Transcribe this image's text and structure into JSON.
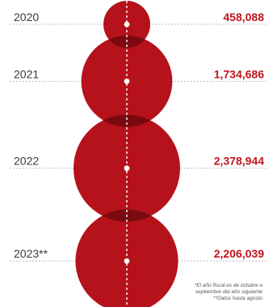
{
  "chart_data": {
    "type": "bubble",
    "categories": [
      "2020",
      "2021",
      "2022",
      "2023**"
    ],
    "values": [
      458088,
      1734686,
      2378944,
      2206039
    ],
    "value_labels": [
      "458,088",
      "1,734,686",
      "2,378,944",
      "2,206,039"
    ],
    "encoding": "circle area proportional to value",
    "grid": false,
    "notes": [
      "*El año fiscal es de octubre a",
      "septiembre del año siguiente",
      "**Datos hasta agosto"
    ],
    "colors": {
      "bubble": "#b5121b",
      "overlap": "#7a0a10",
      "value_text": "#c0151f",
      "year_text": "#3a3a3a",
      "guide_line": "#bdbdbd"
    }
  }
}
